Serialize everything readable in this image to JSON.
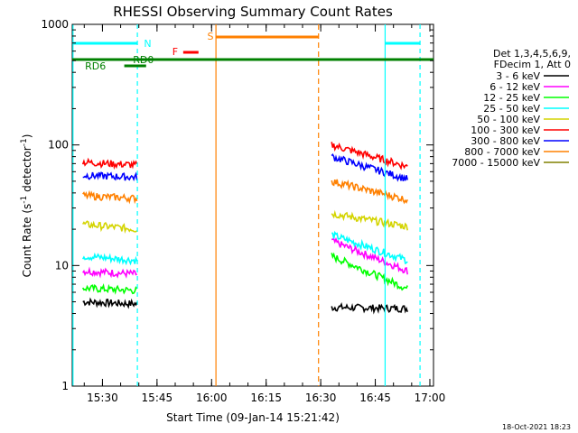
{
  "chart_data": {
    "type": "line",
    "title": "RHESSI Observing Summary Count Rates",
    "xlabel": "Start Time (09-Jan-14 15:21:42)",
    "ylabel_parts": [
      "Count Rate (s",
      "-1",
      " detector",
      "-1",
      ")"
    ],
    "y_scale": "log",
    "ylim": [
      1,
      1000
    ],
    "y_ticks": [
      {
        "v": 1,
        "label": "1"
      },
      {
        "v": 10,
        "label": "10"
      },
      {
        "v": 100,
        "label": "100"
      },
      {
        "v": 1000,
        "label": "1000"
      }
    ],
    "xlim": [
      "15:21:42",
      "17:01:00"
    ],
    "x_ticks": [
      "15:30",
      "15:45",
      "16:00",
      "16:15",
      "16:30",
      "16:45",
      "17:00"
    ],
    "grid": false,
    "legend_position": "right",
    "legend_header": [
      "Det 1,3,4,5,6,9,",
      "FDecim 1, Att 0"
    ],
    "series": [
      {
        "name": "3 - 6 keV",
        "color": "#000000",
        "segments": [
          [
            [
              15.41,
              5
            ],
            [
              15.66,
              4.8
            ]
          ],
          [
            [
              16.55,
              4.5
            ],
            [
              16.9,
              4.4
            ]
          ]
        ]
      },
      {
        "name": "6 - 12 keV",
        "color": "#ff00ff",
        "segments": [
          [
            [
              15.41,
              9
            ],
            [
              15.66,
              8.5
            ]
          ],
          [
            [
              16.55,
              16
            ],
            [
              16.9,
              9
            ]
          ]
        ]
      },
      {
        "name": "12 - 25 keV",
        "color": "#00ff00",
        "segments": [
          [
            [
              15.41,
              6.5
            ],
            [
              15.66,
              6.2
            ]
          ],
          [
            [
              16.55,
              12
            ],
            [
              16.9,
              6.4
            ]
          ]
        ]
      },
      {
        "name": "25 - 50 keV",
        "color": "#00ffff",
        "segments": [
          [
            [
              15.41,
              12
            ],
            [
              15.66,
              11
            ]
          ],
          [
            [
              16.55,
              18
            ],
            [
              16.9,
              11
            ]
          ]
        ]
      },
      {
        "name": "50 - 100 keV",
        "color": "#d4d400",
        "segments": [
          [
            [
              15.41,
              22
            ],
            [
              15.66,
              20
            ]
          ],
          [
            [
              16.55,
              27
            ],
            [
              16.9,
              21
            ]
          ]
        ]
      },
      {
        "name": "100 - 300 keV",
        "color": "#ff0000",
        "segments": [
          [
            [
              15.41,
              72
            ],
            [
              15.66,
              68
            ]
          ],
          [
            [
              16.55,
              100
            ],
            [
              16.9,
              66
            ]
          ]
        ]
      },
      {
        "name": "300 - 800 keV",
        "color": "#0000ff",
        "segments": [
          [
            [
              15.41,
              56
            ],
            [
              15.66,
              54
            ]
          ],
          [
            [
              16.55,
              80
            ],
            [
              16.9,
              52
            ]
          ]
        ]
      },
      {
        "name": "800 - 7000 keV",
        "color": "#ff8000",
        "segments": [
          [
            [
              15.41,
              38
            ],
            [
              15.66,
              36
            ]
          ],
          [
            [
              16.55,
              50
            ],
            [
              16.9,
              35
            ]
          ]
        ]
      },
      {
        "name": "7000 - 15000 keV",
        "color": "#808000",
        "segments": []
      }
    ],
    "annotations": [
      {
        "label": "N",
        "color": "#00ffff"
      },
      {
        "label": "F",
        "color": "#ff0000"
      },
      {
        "label": "S",
        "color": "#ff8000"
      },
      {
        "label": "RD0",
        "color": "#008000"
      },
      {
        "label": "RD6",
        "color": "#008000"
      }
    ]
  },
  "footer": {
    "stamp": "18-Oct-2021 18:23"
  }
}
